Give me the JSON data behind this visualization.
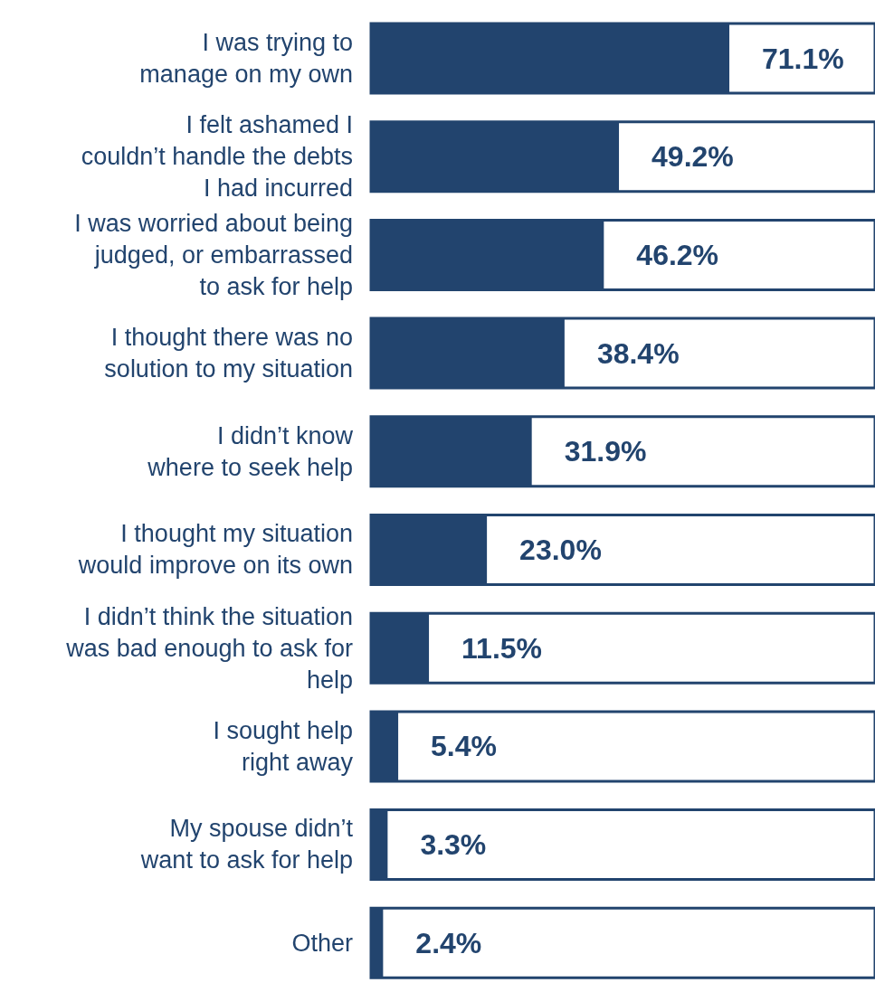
{
  "chart_data": {
    "type": "bar",
    "orientation": "horizontal",
    "categories": [
      "I was trying to\nmanage on my own",
      "I felt ashamed I\ncouldn’t handle the debts\nI had incurred",
      "I was worried about being\njudged, or embarrassed\nto ask for help",
      "I thought there was no\nsolution to my situation",
      "I didn’t know\nwhere to seek help",
      "I thought my situation\nwould improve on its own",
      "I didn’t think the situation\nwas bad enough to ask for\nhelp",
      "I sought help\nright away",
      "My spouse didn’t\nwant to ask for help",
      "Other"
    ],
    "values": [
      71.1,
      49.2,
      46.2,
      38.4,
      31.9,
      23.0,
      11.5,
      5.4,
      3.3,
      2.4
    ],
    "value_labels": [
      "71.1%",
      "49.2%",
      "46.2%",
      "38.4%",
      "31.9%",
      "23.0%",
      "11.5%",
      "5.4%",
      "3.3%",
      "2.4%"
    ],
    "color": "#22446e",
    "xlim": [
      0,
      100
    ],
    "tick_labels": "y"
  }
}
